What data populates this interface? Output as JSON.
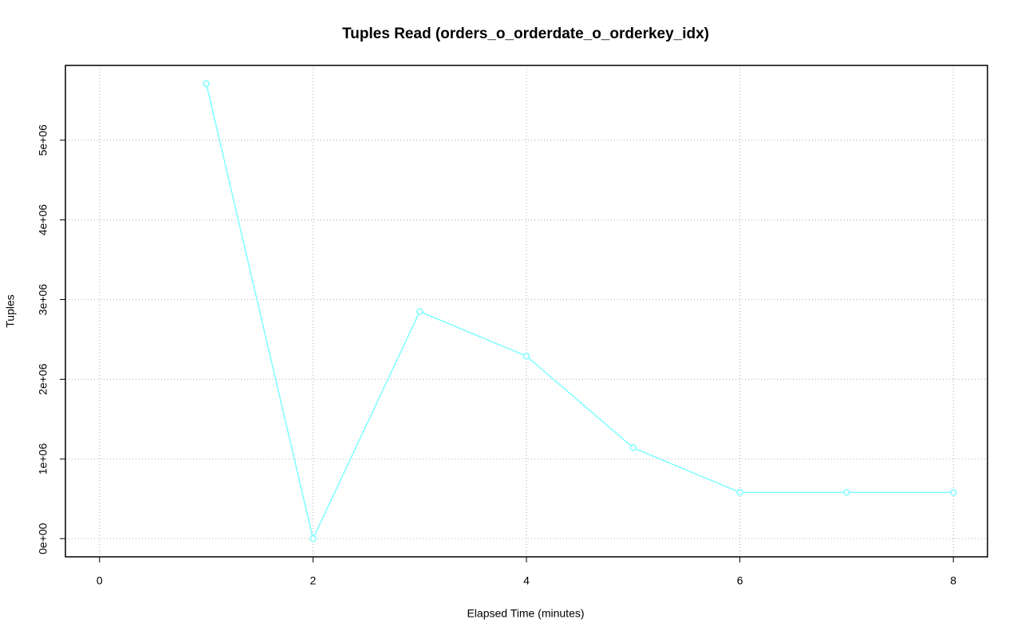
{
  "chart_data": {
    "type": "line",
    "title": "Tuples Read (orders_o_orderdate_o_orderkey_idx)",
    "x_label": "Elapsed Time (minutes)",
    "y_label": "Tuples",
    "x": [
      1,
      2,
      3,
      4,
      5,
      6,
      7,
      8
    ],
    "values": [
      5710000,
      0,
      2850000,
      2290000,
      1140000,
      580000,
      580000,
      580000
    ],
    "color": "#80ffff",
    "xlim": [
      -0.32,
      8.32
    ],
    "ylim": [
      -228400,
      5938400
    ],
    "xticks": [
      0,
      2,
      4,
      6,
      8
    ],
    "yticks": [
      {
        "value": 0,
        "label": "0e+00"
      },
      {
        "value": 1000000,
        "label": "1e+06"
      },
      {
        "value": 2000000,
        "label": "2e+06"
      },
      {
        "value": 3000000,
        "label": "3e+06"
      },
      {
        "value": 4000000,
        "label": "4e+06"
      },
      {
        "value": 5000000,
        "label": "5e+06"
      }
    ],
    "grid": true
  }
}
